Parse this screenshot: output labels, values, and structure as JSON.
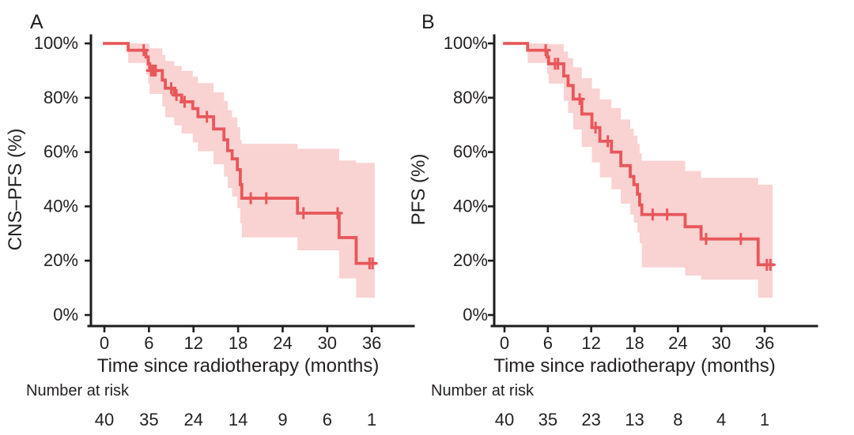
{
  "figure": {
    "background": "#ffffff",
    "line_color": "#e8575a",
    "band_color": "#e8575a",
    "band_opacity": 0.27,
    "axis_color": "#1d1d1f",
    "text_color": "#231f20"
  },
  "chart_data": [
    {
      "type": "line",
      "kind": "kaplan-meier-step",
      "panel": "A",
      "title": "A",
      "ylabel": "CNS–PFS (%)",
      "xlabel": "Time since radiotherapy (months)",
      "xticks": [
        0,
        6,
        12,
        18,
        24,
        30,
        36
      ],
      "yticks": [
        "0%",
        "20%",
        "40%",
        "60%",
        "80%",
        "100%"
      ],
      "xlim": [
        0,
        42
      ],
      "ylim": [
        0,
        100
      ],
      "grid": false,
      "legend": false,
      "curve_end": 36.4,
      "steps": [
        {
          "t": 0,
          "s": 100,
          "lo": 100,
          "hi": 100
        },
        {
          "t": 3.2,
          "s": 97.5,
          "lo": 92.8,
          "hi": 100
        },
        {
          "t": 5.6,
          "s": 95,
          "lo": 88.7,
          "hi": 100
        },
        {
          "t": 5.9,
          "s": 92.5,
          "lo": 85.2,
          "hi": 99.7
        },
        {
          "t": 6.1,
          "s": 90,
          "lo": 81.4,
          "hi": 98.2
        },
        {
          "t": 7.8,
          "s": 86.5,
          "lo": 76.8,
          "hi": 95.8
        },
        {
          "t": 8.2,
          "s": 83.5,
          "lo": 72.8,
          "hi": 93.5
        },
        {
          "t": 9.4,
          "s": 81,
          "lo": 69.8,
          "hi": 91.7
        },
        {
          "t": 10.4,
          "s": 78.5,
          "lo": 66.8,
          "hi": 89.9
        },
        {
          "t": 11.9,
          "s": 76,
          "lo": 63.6,
          "hi": 87.8
        },
        {
          "t": 12.6,
          "s": 73,
          "lo": 60.3,
          "hi": 85.4
        },
        {
          "t": 14.7,
          "s": 68.5,
          "lo": 55.5,
          "hi": 82
        },
        {
          "t": 16.1,
          "s": 64.5,
          "lo": 51,
          "hi": 78.8
        },
        {
          "t": 16.6,
          "s": 60.5,
          "lo": 46.8,
          "hi": 75.4
        },
        {
          "t": 17.2,
          "s": 57.5,
          "lo": 43.6,
          "hi": 72.8
        },
        {
          "t": 17.9,
          "s": 53.5,
          "lo": 39.4,
          "hi": 69.2
        },
        {
          "t": 18.3,
          "s": 48,
          "lo": 33.7,
          "hi": 64.4
        },
        {
          "t": 18.5,
          "s": 43,
          "lo": 28.6,
          "hi": 63
        },
        {
          "t": 26.0,
          "s": 37.5,
          "lo": 23.8,
          "hi": 61.2
        },
        {
          "t": 31.6,
          "s": 28.5,
          "lo": 13.5,
          "hi": 56.9
        },
        {
          "t": 33.9,
          "s": 19,
          "lo": 6.4,
          "hi": 56
        }
      ],
      "censors": [
        {
          "t": 5.3,
          "s": 97.5
        },
        {
          "t": 6.3,
          "s": 90
        },
        {
          "t": 6.6,
          "s": 90
        },
        {
          "t": 6.9,
          "s": 90
        },
        {
          "t": 9.0,
          "s": 83.5
        },
        {
          "t": 9.7,
          "s": 81
        },
        {
          "t": 10.8,
          "s": 78.5
        },
        {
          "t": 13.8,
          "s": 73
        },
        {
          "t": 19.7,
          "s": 43
        },
        {
          "t": 21.8,
          "s": 43
        },
        {
          "t": 26.8,
          "s": 37.5
        },
        {
          "t": 31.4,
          "s": 37.5
        },
        {
          "t": 35.7,
          "s": 19
        },
        {
          "t": 36.1,
          "s": 19
        }
      ],
      "number_at_risk": {
        "label": "Number at risk",
        "times": [
          0,
          6,
          12,
          18,
          24,
          30,
          36
        ],
        "counts": [
          40,
          35,
          24,
          14,
          9,
          6,
          1
        ]
      }
    },
    {
      "type": "line",
      "kind": "kaplan-meier-step",
      "panel": "B",
      "title": "B",
      "ylabel": "PFS (%)",
      "xlabel": "Time since radiotherapy (months)",
      "xticks": [
        0,
        6,
        12,
        18,
        24,
        30,
        36
      ],
      "yticks": [
        "0%",
        "20%",
        "40%",
        "60%",
        "80%",
        "100%"
      ],
      "xlim": [
        0,
        42
      ],
      "ylim": [
        0,
        100
      ],
      "grid": false,
      "legend": false,
      "curve_end": 37.1,
      "steps": [
        {
          "t": 0,
          "s": 100,
          "lo": 100,
          "hi": 100
        },
        {
          "t": 3.2,
          "s": 97.5,
          "lo": 92.8,
          "hi": 100
        },
        {
          "t": 5.9,
          "s": 95,
          "lo": 88.7,
          "hi": 100
        },
        {
          "t": 6.1,
          "s": 92.5,
          "lo": 85.2,
          "hi": 99.7
        },
        {
          "t": 8.2,
          "s": 88,
          "lo": 78.9,
          "hi": 97
        },
        {
          "t": 8.8,
          "s": 84.5,
          "lo": 74.4,
          "hi": 94.6
        },
        {
          "t": 9.5,
          "s": 79.5,
          "lo": 68.3,
          "hi": 91.2
        },
        {
          "t": 10.7,
          "s": 74,
          "lo": 61.9,
          "hi": 87.2
        },
        {
          "t": 12.1,
          "s": 69,
          "lo": 56.2,
          "hi": 83.4
        },
        {
          "t": 13.2,
          "s": 64,
          "lo": 50.7,
          "hi": 79.4
        },
        {
          "t": 14.8,
          "s": 60,
          "lo": 46.3,
          "hi": 76.2
        },
        {
          "t": 16.1,
          "s": 55,
          "lo": 41,
          "hi": 72
        },
        {
          "t": 17.4,
          "s": 51,
          "lo": 37,
          "hi": 68.6
        },
        {
          "t": 17.9,
          "s": 48,
          "lo": 34,
          "hi": 66
        },
        {
          "t": 18.4,
          "s": 44.5,
          "lo": 30.4,
          "hi": 63
        },
        {
          "t": 18.7,
          "s": 40.5,
          "lo": 26.5,
          "hi": 59.5
        },
        {
          "t": 19.0,
          "s": 37,
          "lo": 17.5,
          "hi": 56.8
        },
        {
          "t": 25.0,
          "s": 32.5,
          "lo": 14.5,
          "hi": 53
        },
        {
          "t": 27.2,
          "s": 28,
          "lo": 13,
          "hi": 50.5
        },
        {
          "t": 35.1,
          "s": 18.5,
          "lo": 6.4,
          "hi": 48
        }
      ],
      "censors": [
        {
          "t": 5.7,
          "s": 97.5
        },
        {
          "t": 7.0,
          "s": 92.5
        },
        {
          "t": 7.4,
          "s": 92.5
        },
        {
          "t": 10.4,
          "s": 79.5
        },
        {
          "t": 12.6,
          "s": 69
        },
        {
          "t": 14.3,
          "s": 64
        },
        {
          "t": 20.5,
          "s": 37
        },
        {
          "t": 22.5,
          "s": 37
        },
        {
          "t": 27.9,
          "s": 28
        },
        {
          "t": 32.7,
          "s": 28
        },
        {
          "t": 36.3,
          "s": 18.5
        },
        {
          "t": 36.8,
          "s": 18.5
        }
      ],
      "number_at_risk": {
        "label": "Number at risk",
        "times": [
          0,
          6,
          12,
          18,
          24,
          30,
          36
        ],
        "counts": [
          40,
          35,
          23,
          13,
          8,
          4,
          1
        ]
      }
    }
  ]
}
